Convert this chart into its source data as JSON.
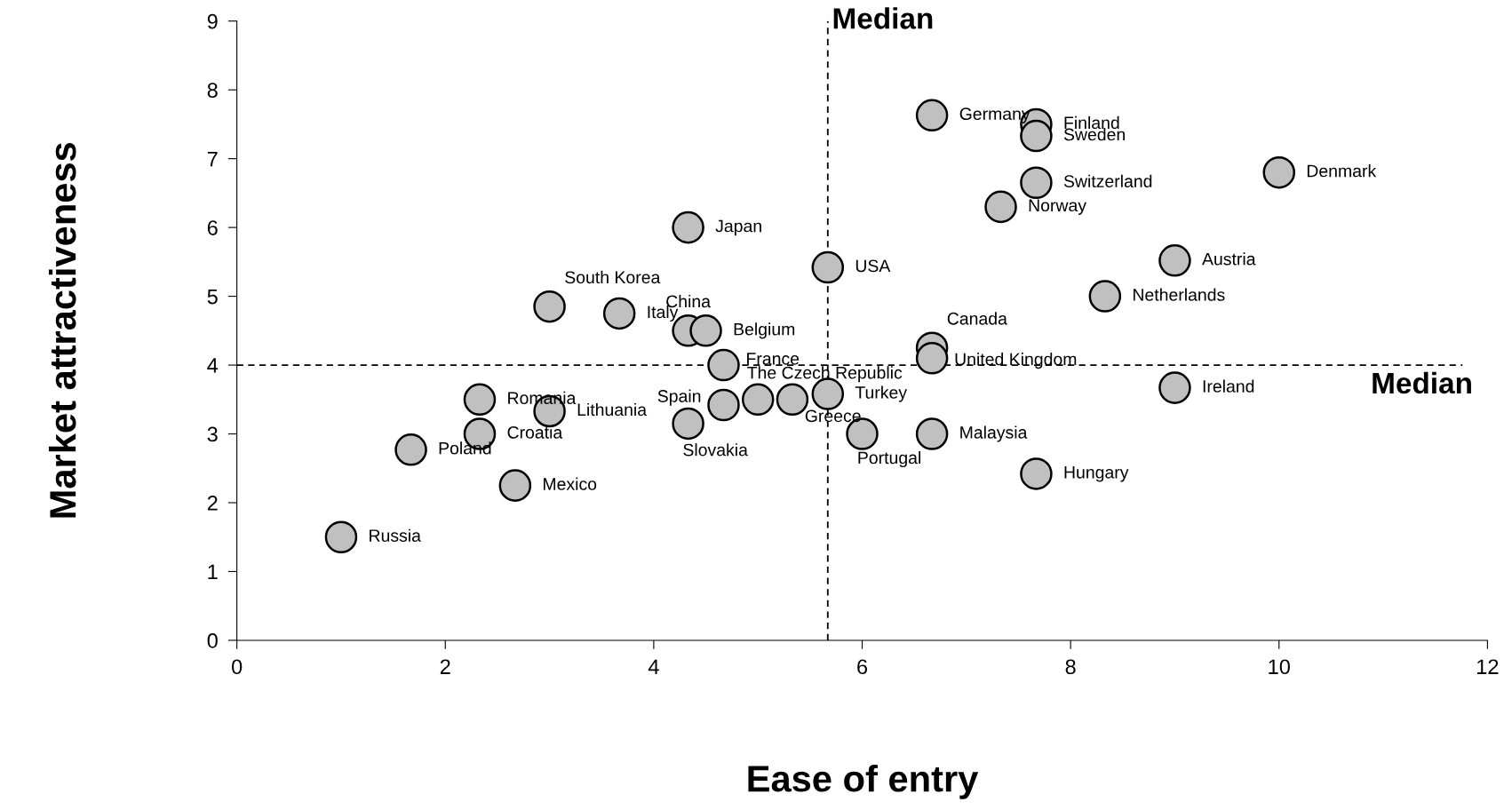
{
  "chart_data": {
    "type": "scatter",
    "xlabel": "Ease of entry",
    "ylabel": "Market attractiveness",
    "xlim": [
      0,
      12
    ],
    "ylim": [
      0,
      9
    ],
    "xticks": [
      0,
      2,
      4,
      6,
      8,
      10,
      12
    ],
    "yticks": [
      0,
      1,
      2,
      3,
      4,
      5,
      6,
      7,
      8,
      9
    ],
    "grid": false,
    "marker": "circle",
    "series": [
      {
        "color": "#c0c0c0",
        "x": [
          1.0,
          1.67,
          2.67,
          2.33,
          2.33,
          3.0,
          3.0,
          3.67,
          4.33,
          4.33,
          4.5,
          4.67,
          4.67,
          4.33,
          5.0,
          5.33,
          5.67,
          5.67,
          6.0,
          6.67,
          6.67,
          6.67,
          6.67,
          7.67,
          7.67,
          7.67,
          7.33,
          7.67,
          8.33,
          9.0,
          9.0,
          10.0
        ],
        "values": [
          1.5,
          2.77,
          2.25,
          3.0,
          3.5,
          3.33,
          4.85,
          4.75,
          6.0,
          4.5,
          4.5,
          4.0,
          3.42,
          3.15,
          3.5,
          3.5,
          3.58,
          5.42,
          3.0,
          3.0,
          4.25,
          4.1,
          7.63,
          7.5,
          7.33,
          6.65,
          6.3,
          2.42,
          5.0,
          5.52,
          3.67,
          6.8
        ]
      }
    ],
    "annotations": [
      {
        "text": "Russia",
        "x": 1.0,
        "y": 1.5
      },
      {
        "text": "Poland",
        "x": 1.67,
        "y": 2.77
      },
      {
        "text": "Mexico",
        "x": 2.67,
        "y": 2.25
      },
      {
        "text": "Croatia",
        "x": 2.33,
        "y": 3.0
      },
      {
        "text": "Romania",
        "x": 2.33,
        "y": 3.5
      },
      {
        "text": "Lithuania",
        "x": 3.0,
        "y": 3.33
      },
      {
        "text": "South Korea",
        "x": 3.0,
        "y": 4.85
      },
      {
        "text": "Italy",
        "x": 3.67,
        "y": 4.75
      },
      {
        "text": "Japan",
        "x": 4.33,
        "y": 6.0
      },
      {
        "text": "China",
        "x": 4.33,
        "y": 4.5
      },
      {
        "text": "Belgium",
        "x": 4.5,
        "y": 4.5
      },
      {
        "text": "France",
        "x": 4.67,
        "y": 4.0
      },
      {
        "text": "Spain",
        "x": 4.67,
        "y": 3.42
      },
      {
        "text": "Slovakia",
        "x": 4.33,
        "y": 3.15
      },
      {
        "text": "The Czech Republic",
        "x": 5.0,
        "y": 3.5
      },
      {
        "text": "Greece",
        "x": 5.33,
        "y": 3.5
      },
      {
        "text": "Turkey",
        "x": 5.67,
        "y": 3.58
      },
      {
        "text": "USA",
        "x": 5.67,
        "y": 5.42
      },
      {
        "text": "Portugal",
        "x": 6.0,
        "y": 3.0
      },
      {
        "text": "Malaysia",
        "x": 6.67,
        "y": 3.0
      },
      {
        "text": "Canada",
        "x": 6.67,
        "y": 4.25
      },
      {
        "text": "United Kingdom",
        "x": 6.67,
        "y": 4.1
      },
      {
        "text": "Germany",
        "x": 6.67,
        "y": 7.63
      },
      {
        "text": "Finland",
        "x": 7.67,
        "y": 7.5
      },
      {
        "text": "Sweden",
        "x": 7.67,
        "y": 7.33
      },
      {
        "text": "Switzerland",
        "x": 7.67,
        "y": 6.65
      },
      {
        "text": "Norway",
        "x": 7.33,
        "y": 6.3
      },
      {
        "text": "Hungary",
        "x": 7.67,
        "y": 2.42
      },
      {
        "text": "Netherlands",
        "x": 8.33,
        "y": 5.0
      },
      {
        "text": "Austria",
        "x": 9.0,
        "y": 5.52
      },
      {
        "text": "Ireland",
        "x": 9.0,
        "y": 3.67
      },
      {
        "text": "Denmark",
        "x": 10.0,
        "y": 6.8
      }
    ],
    "ref_lines": [
      {
        "axis": "x",
        "value": 5.67,
        "label": "Median",
        "color": "#000000",
        "line_style": "dashed"
      },
      {
        "axis": "y",
        "value": 4.0,
        "label": "Median",
        "color": "#000000",
        "line_style": "dashed"
      }
    ]
  }
}
